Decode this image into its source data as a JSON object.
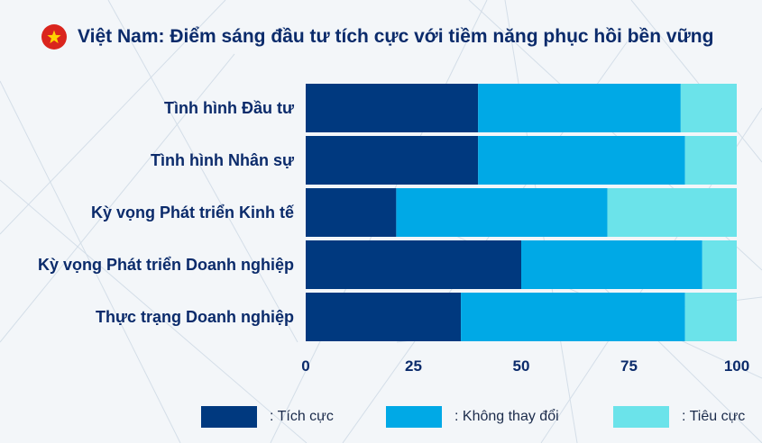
{
  "header": {
    "title": "Việt Nam: Điểm sáng đầu tư tích cực với tiềm năng phục hồi bền vững",
    "flag_icon": "vietnam-flag-icon"
  },
  "colors": {
    "positive": "#00397f",
    "unchanged": "#00a9e6",
    "negative": "#6be3ea",
    "text": "#0b2b6b",
    "flag_red": "#da251d",
    "flag_star": "#ffd400"
  },
  "chart_data": {
    "type": "bar",
    "orientation": "horizontal",
    "stacked": true,
    "categories": [
      "Tình hình Đầu tư",
      "Tình hình Nhân sự",
      "Kỳ vọng Phát triển Kinh tế",
      "Kỳ vọng Phát triển Doanh nghiệp",
      "Thực trạng Doanh nghiệp"
    ],
    "series": [
      {
        "name": ": Tích cực",
        "color": "#00397f",
        "values": [
          40,
          40,
          21,
          50,
          36
        ]
      },
      {
        "name": ": Không thay đổi",
        "color": "#00a9e6",
        "values": [
          47,
          48,
          49,
          42,
          52
        ]
      },
      {
        "name": ": Tiêu cực",
        "color": "#6be3ea",
        "values": [
          13,
          12,
          30,
          8,
          12
        ]
      }
    ],
    "xlim": [
      0,
      100
    ],
    "xticks": [
      0,
      25,
      50,
      75,
      100
    ],
    "xtick_labels": [
      "0",
      "25",
      "50",
      "75",
      "100"
    ],
    "xlabel": "",
    "ylabel": "",
    "grid": false,
    "legend_position": "bottom"
  }
}
